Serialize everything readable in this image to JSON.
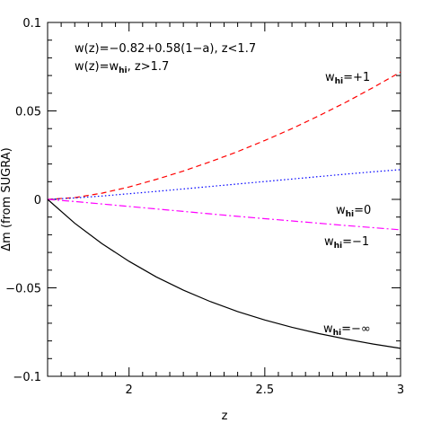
{
  "chart_data": {
    "type": "line",
    "xlabel": "z",
    "ylabel": "Δm (from SUGRA)",
    "xlim": [
      1.7,
      3
    ],
    "ylim": [
      -0.1,
      0.1
    ],
    "grid": false,
    "x_ticks": [
      {
        "value": 2,
        "label": "2"
      },
      {
        "value": 2.5,
        "label": "2.5"
      },
      {
        "value": 3,
        "label": "3"
      }
    ],
    "y_ticks": [
      {
        "value": -0.1,
        "label": "−0.1"
      },
      {
        "value": -0.05,
        "label": "−0.05"
      },
      {
        "value": 0,
        "label": "0"
      },
      {
        "value": 0.05,
        "label": "0.05"
      },
      {
        "value": 0.1,
        "label": "0.1"
      }
    ],
    "annotations": {
      "line1": "w(z)=−0.82+0.58(1−a),  z<1.7",
      "line2_prefix": "w(z)=w",
      "line2_sub": "hi",
      "line2_suffix": ",  z>1.7"
    },
    "series": [
      {
        "label_prefix": "w",
        "label_sub": "hi",
        "label_value": "=+1",
        "color": "#ff0000",
        "dash": "dashed",
        "x": [
          1.7,
          1.8,
          1.9,
          2.0,
          2.1,
          2.2,
          2.3,
          2.4,
          2.5,
          2.6,
          2.7,
          2.8,
          2.9,
          3.0
        ],
        "y": [
          0.0,
          0.001,
          0.0035,
          0.007,
          0.0113,
          0.016,
          0.0213,
          0.027,
          0.0333,
          0.04,
          0.0473,
          0.055,
          0.0633,
          0.072
        ]
      },
      {
        "label_prefix": "w",
        "label_sub": "hi",
        "label_value": "=0",
        "color": "#0000ff",
        "dash": "dotted",
        "x": [
          1.7,
          1.8,
          1.9,
          2.0,
          2.1,
          2.2,
          2.3,
          2.4,
          2.5,
          2.6,
          2.7,
          2.8,
          2.9,
          3.0
        ],
        "y": [
          0.0,
          0.0008,
          0.0019,
          0.0032,
          0.0045,
          0.0059,
          0.0073,
          0.0087,
          0.0101,
          0.0115,
          0.0129,
          0.0143,
          0.0156,
          0.0168
        ]
      },
      {
        "label_prefix": "w",
        "label_sub": "hi",
        "label_value": "=−1",
        "color": "#ff00ff",
        "dash": "dashdot",
        "x": [
          1.7,
          1.8,
          1.9,
          2.0,
          2.1,
          2.2,
          2.3,
          2.4,
          2.5,
          2.6,
          2.7,
          2.8,
          2.9,
          3.0
        ],
        "y": [
          0.0,
          -0.0012,
          -0.0026,
          -0.004,
          -0.0054,
          -0.0068,
          -0.0082,
          -0.0096,
          -0.0109,
          -0.0122,
          -0.0135,
          -0.0148,
          -0.016,
          -0.0172
        ]
      },
      {
        "label_prefix": "w",
        "label_sub": "hi",
        "label_value": "=−∞",
        "color": "#000000",
        "dash": "solid",
        "x": [
          1.7,
          1.8,
          1.9,
          2.0,
          2.1,
          2.2,
          2.3,
          2.4,
          2.5,
          2.6,
          2.7,
          2.8,
          2.9,
          3.0
        ],
        "y": [
          0.0,
          -0.0135,
          -0.025,
          -0.035,
          -0.0438,
          -0.0513,
          -0.0578,
          -0.0634,
          -0.0682,
          -0.0723,
          -0.0759,
          -0.079,
          -0.0818,
          -0.0842
        ]
      }
    ]
  }
}
